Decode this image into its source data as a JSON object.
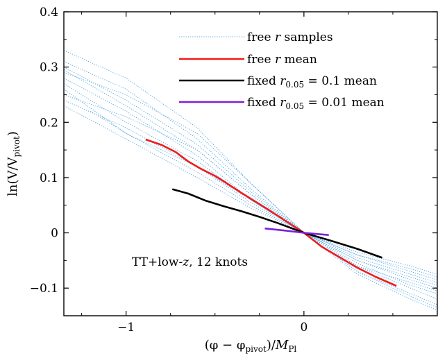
{
  "chart_data": {
    "type": "line",
    "title": "",
    "xlabel": "(φ − φ_pivot)/M_Pl",
    "ylabel": "ln(V/V_pivot)",
    "xlim": [
      -1.35,
      0.75
    ],
    "ylim": [
      -0.15,
      0.4
    ],
    "x_ticks": [
      -1,
      0
    ],
    "x_tick_labels": [
      "−1",
      "0"
    ],
    "y_ticks": [
      -0.1,
      0,
      0.1,
      0.2,
      0.3,
      0.4
    ],
    "y_tick_labels": [
      "−0.1",
      "0",
      "0.1",
      "0.2",
      "0.3",
      "0.4"
    ],
    "grid": false,
    "legend_position": "top-right",
    "annotation": "TT+low-z, 12 knots",
    "series": [
      {
        "name": "free r samples",
        "color": "#5aa7e0",
        "style": "dotted",
        "samples": [
          {
            "x": [
              -1.35,
              -1.0,
              -0.6,
              -0.3,
              0,
              0.3,
              0.6,
              0.75
            ],
            "y": [
              0.33,
              0.28,
              0.19,
              0.09,
              0,
              -0.075,
              -0.12,
              -0.14
            ]
          },
          {
            "x": [
              -1.35,
              -1.0,
              -0.6,
              -0.3,
              0,
              0.3,
              0.6,
              0.75
            ],
            "y": [
              0.31,
              0.26,
              0.17,
              0.08,
              0,
              -0.07,
              -0.115,
              -0.135
            ]
          },
          {
            "x": [
              -1.35,
              -1.0,
              -0.6,
              -0.3,
              0,
              0.3,
              0.6,
              0.75
            ],
            "y": [
              0.3,
              0.24,
              0.16,
              0.075,
              0,
              -0.06,
              -0.1,
              -0.12
            ]
          },
          {
            "x": [
              -1.35,
              -1.0,
              -0.6,
              -0.3,
              0,
              0.3,
              0.6,
              0.75
            ],
            "y": [
              0.29,
              0.25,
              0.18,
              0.09,
              0,
              -0.07,
              -0.11,
              -0.13
            ]
          },
          {
            "x": [
              -1.35,
              -1.0,
              -0.6,
              -0.3,
              0,
              0.3,
              0.6,
              0.75
            ],
            "y": [
              0.28,
              0.22,
              0.14,
              0.06,
              0,
              -0.05,
              -0.085,
              -0.1
            ]
          },
          {
            "x": [
              -1.35,
              -1.0,
              -0.6,
              -0.3,
              0,
              0.3,
              0.6,
              0.75
            ],
            "y": [
              0.27,
              0.2,
              0.13,
              0.06,
              0,
              -0.045,
              -0.075,
              -0.09
            ]
          },
          {
            "x": [
              -1.35,
              -1.0,
              -0.6,
              -0.3,
              0,
              0.3,
              0.6,
              0.75
            ],
            "y": [
              0.25,
              0.21,
              0.15,
              0.07,
              0,
              -0.06,
              -0.09,
              -0.105
            ]
          },
          {
            "x": [
              -1.35,
              -1.0,
              -0.6,
              -0.3,
              0,
              0.3,
              0.6,
              0.75
            ],
            "y": [
              0.24,
              0.19,
              0.12,
              0.055,
              0,
              -0.04,
              -0.07,
              -0.085
            ]
          },
          {
            "x": [
              -1.35,
              -1.0,
              -0.6,
              -0.3,
              0,
              0.3,
              0.6,
              0.75
            ],
            "y": [
              0.26,
              0.18,
              0.11,
              0.05,
              0,
              -0.04,
              -0.065,
              -0.08
            ]
          },
          {
            "x": [
              -1.35,
              -1.0,
              -0.6,
              -0.3,
              0,
              0.3,
              0.6,
              0.75
            ],
            "y": [
              0.23,
              0.17,
              0.1,
              0.045,
              0,
              -0.035,
              -0.06,
              -0.075
            ]
          },
          {
            "x": [
              -1.2,
              -1.0,
              -0.6,
              -0.3,
              0,
              0.3,
              0.6,
              0.75
            ],
            "y": [
              0.22,
              0.18,
              0.12,
              0.06,
              0,
              -0.05,
              -0.08,
              -0.095
            ]
          },
          {
            "x": [
              -1.35,
              -1.0,
              -0.6,
              -0.3,
              0,
              0.3,
              0.6,
              0.75
            ],
            "y": [
              0.295,
              0.23,
              0.15,
              0.07,
              0,
              -0.055,
              -0.095,
              -0.11
            ]
          }
        ]
      },
      {
        "name": "free r mean",
        "color": "#ee1c1c",
        "style": "solid",
        "x": [
          -0.89,
          -0.8,
          -0.72,
          -0.65,
          -0.58,
          -0.5,
          -0.45,
          -0.35,
          -0.2,
          -0.1,
          0,
          0.1,
          0.2,
          0.3,
          0.4,
          0.52
        ],
        "y": [
          0.169,
          0.159,
          0.146,
          0.129,
          0.116,
          0.103,
          0.093,
          0.072,
          0.042,
          0.021,
          0,
          -0.025,
          -0.044,
          -0.063,
          -0.079,
          -0.096
        ]
      },
      {
        "name": "fixed r_0.05 = 0.1 mean",
        "color": "#000000",
        "style": "solid",
        "x": [
          -0.74,
          -0.65,
          -0.55,
          -0.45,
          -0.35,
          -0.25,
          -0.15,
          0,
          0.15,
          0.3,
          0.44
        ],
        "y": [
          0.079,
          0.071,
          0.058,
          0.048,
          0.039,
          0.029,
          0.018,
          0,
          -0.014,
          -0.029,
          -0.045
        ]
      },
      {
        "name": "fixed r_0.05 = 0.01 mean",
        "color": "#7d1fd8",
        "style": "solid",
        "x": [
          -0.22,
          -0.1,
          0,
          0.14
        ],
        "y": [
          0.008,
          0.004,
          0,
          -0.004
        ]
      }
    ]
  },
  "legend": {
    "entries": [
      {
        "prefix": "free ",
        "var": "r",
        "sub": "",
        "suffix": " samples",
        "color": "#4a9ee8"
      },
      {
        "prefix": "free ",
        "var": "r",
        "sub": "",
        "suffix": " mean",
        "color": "#ee1c1c"
      },
      {
        "prefix": "fixed ",
        "var": "r",
        "sub": "0.05",
        "suffix": " = 0.1 mean",
        "color": "#000000"
      },
      {
        "prefix": "fixed ",
        "var": "r",
        "sub": "0.05",
        "suffix": " = 0.01 mean",
        "color": "#8a2be2"
      }
    ]
  },
  "axis_text": {
    "x_prefix": "(φ − φ",
    "x_sub": "pivot",
    "x_mid": ")/",
    "x_var": "M",
    "x_sub2": "Pl",
    "y_prefix": "ln(V/V",
    "y_sub": "pivot",
    "y_suffix": ")"
  },
  "annotation_text": {
    "prefix": "TT+low-",
    "var": "z",
    "suffix": ", 12 knots"
  }
}
